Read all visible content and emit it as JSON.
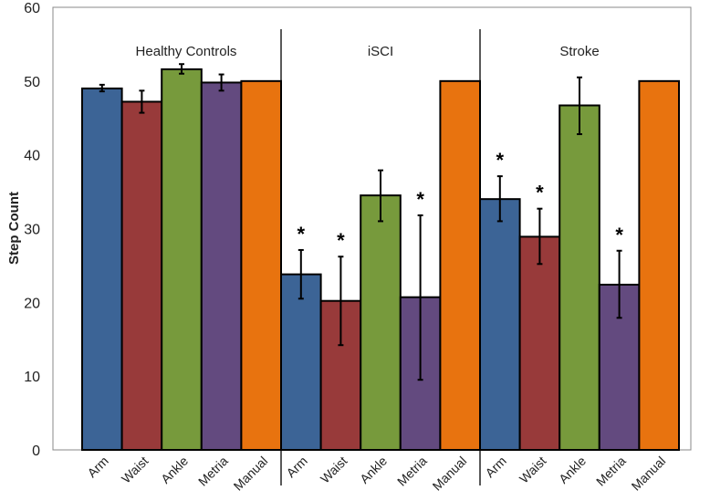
{
  "chart_data": {
    "type": "bar",
    "title": "",
    "xlabel": "",
    "ylabel": "Step Count",
    "ylim": [
      0,
      60
    ],
    "yticks": [
      "0",
      "10",
      "20",
      "30",
      "40",
      "50",
      "60"
    ],
    "grid": false,
    "groups": [
      "Healthy Controls",
      "iSCI",
      "Stroke"
    ],
    "categories": [
      "Arm",
      "Waist",
      "Ankle",
      "Metria",
      "Manual"
    ],
    "colors": {
      "Arm": "#3c6496",
      "Waist": "#983a3a",
      "Ankle": "#779a3c",
      "Metria": "#634a7f",
      "Manual": "#e8730f"
    },
    "significance_marker": "*",
    "series": [
      {
        "name": "Healthy Controls",
        "values": [
          49.0,
          47.2,
          51.6,
          49.8,
          50
        ],
        "error_low": [
          48.6,
          45.7,
          51.0,
          48.7,
          null
        ],
        "error_high": [
          49.5,
          48.7,
          52.3,
          50.9,
          null
        ],
        "significant": [
          false,
          false,
          false,
          false,
          false
        ]
      },
      {
        "name": "iSCI",
        "values": [
          23.8,
          20.2,
          34.5,
          20.7,
          50
        ],
        "error_low": [
          20.5,
          14.2,
          31.0,
          9.5,
          null
        ],
        "error_high": [
          27.1,
          26.2,
          37.9,
          31.8,
          null
        ],
        "significant": [
          true,
          true,
          false,
          true,
          false
        ]
      },
      {
        "name": "Stroke",
        "values": [
          34.0,
          28.9,
          46.7,
          22.4,
          50
        ],
        "error_low": [
          31.0,
          25.2,
          42.8,
          17.9,
          null
        ],
        "error_high": [
          37.1,
          32.7,
          50.5,
          27.0,
          null
        ],
        "significant": [
          true,
          true,
          false,
          true,
          false
        ]
      }
    ]
  }
}
